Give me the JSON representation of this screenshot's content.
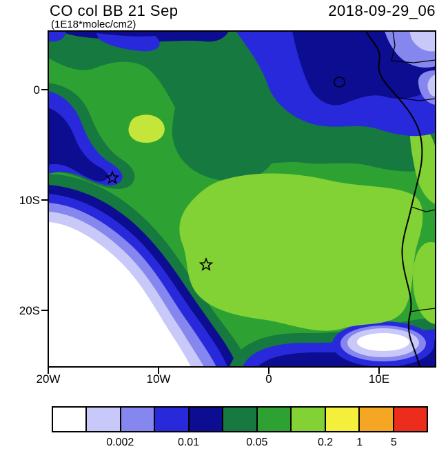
{
  "header": {
    "title": "CO col BB 21 Sep",
    "subtitle": "(1E18*molec/cm2)",
    "datestamp": "2018-09-29_06"
  },
  "map": {
    "y_axis": [
      "0",
      "10S",
      "20S"
    ],
    "x_axis": [
      "20W",
      "10W",
      "0",
      "10E"
    ]
  },
  "chart_data": {
    "type": "heatmap",
    "subtype": "filled-contour-latlon-map",
    "title": "CO col BB 21 Sep",
    "units": "1E18*molec/cm2",
    "timestamp": "2018-09-29_06",
    "x_tick_labels": [
      "20W",
      "10W",
      "0",
      "10E"
    ],
    "y_tick_labels": [
      "0",
      "10S",
      "20S"
    ],
    "approx_lon_range": [
      "20W",
      "15E"
    ],
    "approx_lat_range": [
      "5N",
      "25S"
    ],
    "colorbar": {
      "orientation": "horizontal",
      "colors": [
        "#ffffff",
        "#c9c9f9",
        "#8687ee",
        "#2929dc",
        "#0d0d91",
        "#16793f",
        "#2da233",
        "#82d236",
        "#f4ef3b",
        "#f5a623",
        "#ec2d1c"
      ],
      "ticks": [
        {
          "label": "0.002",
          "boundary": 2
        },
        {
          "label": "0.01",
          "boundary": 4
        },
        {
          "label": "0.05",
          "boundary": 6
        },
        {
          "label": "0.2",
          "boundary": 8
        },
        {
          "label": "1",
          "boundary": 9
        },
        {
          "label": "5",
          "boundary": 10
        }
      ]
    },
    "markers": [
      {
        "shape": "star",
        "approx_lon": "14W",
        "approx_lat": "8S"
      },
      {
        "shape": "star",
        "approx_lon": "6W",
        "approx_lat": "16S"
      }
    ],
    "field_summary": [
      "Broad light-green maximum (~0.2-1) over the eastern tropical South Atlantic and central-southern Africa",
      "Sharp plume edge in the southwest: values fall below 0.002 (white) with tight lavender/purple/blue gradient bands",
      "Low-column region (0.002-0.05, blues/purples) in the northeast near the equator over West/Central Africa",
      "Small clean (white) pocket ringed by lavender and blue near the Angolan coast in the southeast",
      "Two star markers in the plume at roughly 14W/8S and 6W/16S"
    ]
  }
}
